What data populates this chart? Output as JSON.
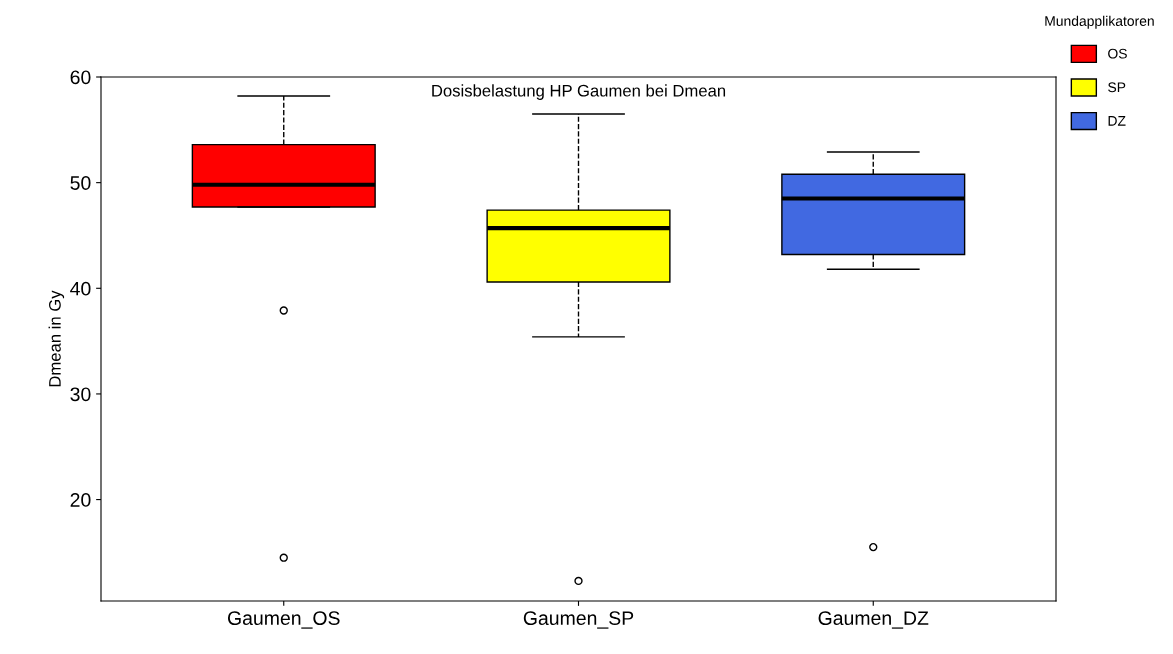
{
  "chart_data": {
    "type": "box",
    "title": "Dosisbelastung HP Gaumen bei Dmean",
    "ylabel": "Dmean in Gy",
    "legend_title": "Mundapplikatoren",
    "legend": "top right",
    "grid": false,
    "line_style": "dashed",
    "categories": [
      "Gaumen_OS",
      "Gaumen_SP",
      "Gaumen_DZ"
    ],
    "ylim": [
      10.4,
      60
    ],
    "yticks": [
      20,
      30,
      40,
      50,
      60
    ],
    "series": [
      {
        "name": "OS",
        "color": "#ff0000",
        "boxes": [
          {
            "low": 47.7,
            "q1": 47.7,
            "median": 49.8,
            "q3": 53.6,
            "high": 58.2,
            "outliers": [
              37.9,
              14.5
            ]
          },
          null,
          null
        ]
      },
      {
        "name": "SP",
        "color": "#ffff00",
        "boxes": [
          null,
          {
            "low": 35.4,
            "q1": 40.6,
            "median": 45.7,
            "q3": 47.4,
            "high": 56.5,
            "outliers": [
              12.3
            ]
          },
          null
        ]
      },
      {
        "name": "DZ",
        "color": "#4169e1",
        "boxes": [
          null,
          null,
          {
            "low": 41.8,
            "q1": 43.2,
            "median": 48.5,
            "q3": 50.8,
            "high": 52.9,
            "outliers": [
              15.5
            ]
          }
        ]
      }
    ]
  }
}
